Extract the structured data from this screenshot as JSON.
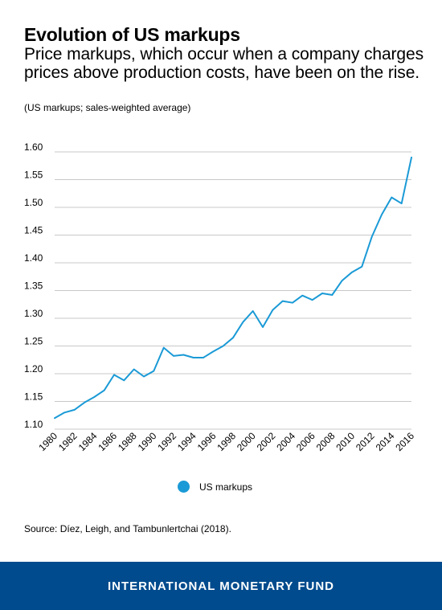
{
  "header": {
    "title": "Evolution of US markups",
    "subtitle": "Price markups, which occur when a company charges prices above production costs, have been on the rise.",
    "note": "(US markups; sales-weighted average)"
  },
  "chart_data": {
    "type": "line",
    "ylim": [
      1.1,
      1.6
    ],
    "yticks": [
      "1.10",
      "1.15",
      "1.20",
      "1.25",
      "1.30",
      "1.35",
      "1.40",
      "1.45",
      "1.50",
      "1.55",
      "1.60"
    ],
    "xlim": [
      1980,
      2016
    ],
    "xticks": [
      "1980",
      "1982",
      "1984",
      "1986",
      "1988",
      "1990",
      "1992",
      "1994",
      "1996",
      "1998",
      "2000",
      "2002",
      "2004",
      "2006",
      "2008",
      "2010",
      "2012",
      "2014",
      "2016"
    ],
    "grid": "horizontal",
    "legend_position": "bottom",
    "series": [
      {
        "name": "US markups",
        "color": "#1a9ad6",
        "x": [
          1980,
          1981,
          1982,
          1983,
          1984,
          1985,
          1986,
          1987,
          1988,
          1989,
          1990,
          1991,
          1992,
          1993,
          1994,
          1995,
          1996,
          1997,
          1998,
          1999,
          2000,
          2001,
          2002,
          2003,
          2004,
          2005,
          2006,
          2007,
          2008,
          2009,
          2010,
          2011,
          2012,
          2013,
          2014,
          2015,
          2016
        ],
        "values": [
          1.12,
          1.13,
          1.135,
          1.148,
          1.158,
          1.17,
          1.198,
          1.188,
          1.208,
          1.195,
          1.205,
          1.247,
          1.232,
          1.234,
          1.229,
          1.229,
          1.24,
          1.25,
          1.265,
          1.293,
          1.313,
          1.284,
          1.315,
          1.331,
          1.328,
          1.341,
          1.333,
          1.345,
          1.342,
          1.368,
          1.383,
          1.393,
          1.447,
          1.487,
          1.518,
          1.507,
          1.59
        ]
      }
    ]
  },
  "source": "Source: Díez, Leigh, and Tambunlertchai (2018).",
  "footer": {
    "text": "INTERNATIONAL MONETARY FUND",
    "background": "#004b8d"
  }
}
